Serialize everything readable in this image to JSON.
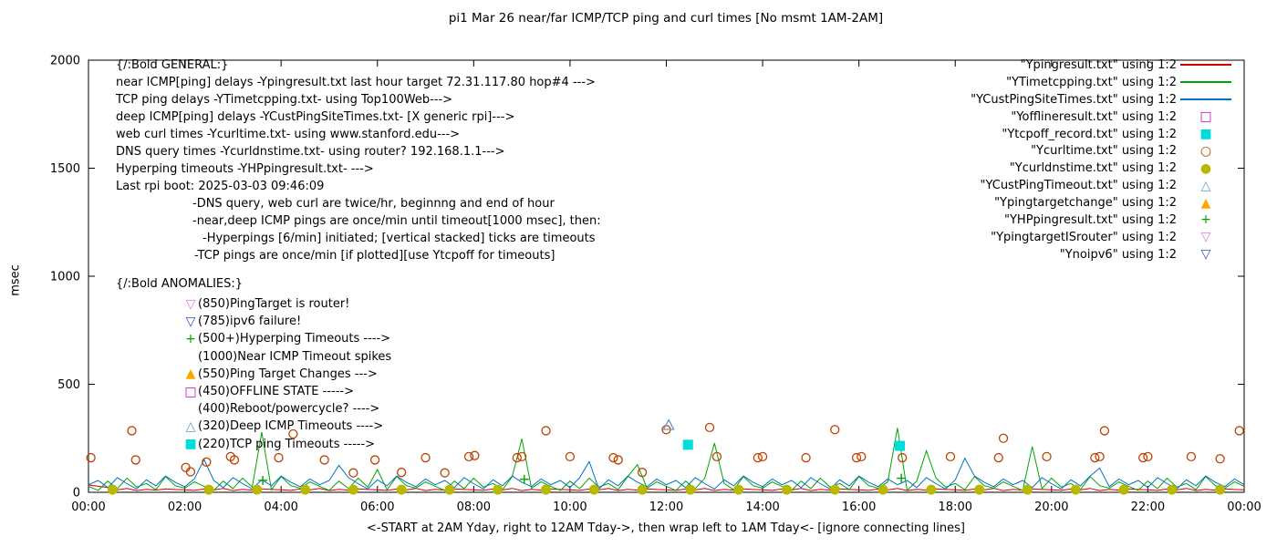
{
  "title": "pi1 Mar 26  near/far ICMP/TCP ping and curl times [No msmt 1AM-2AM]",
  "ylabel": "msec",
  "xlabel": "<-START at 2AM Yday, right to 12AM Tday->, then wrap left to 1AM Tday<- [ignore connecting lines]",
  "annotations": {
    "general": [
      {
        "text": "{/:Bold GENERAL:}",
        "indent": 0
      },
      {
        "text": "near ICMP[ping] delays -Ypingresult.txt last hour target 72.31.117.80 hop#4 --->",
        "indent": 0
      },
      {
        "text": "TCP ping delays -YTimetcpping.txt- using Top100Web--->",
        "indent": 0
      },
      {
        "text": "deep ICMP[ping] delays -YCustPingSiteTimes.txt- [X generic rpi]--->",
        "indent": 0
      },
      {
        "text": "web curl times -Ycurltime.txt- using www.stanford.edu--->",
        "indent": 0
      },
      {
        "text": "DNS query times -Ycurldnstime.txt- using router? 192.168.1.1--->",
        "indent": 0
      },
      {
        "text": "Hyperping timeouts -YHPpingresult.txt- --->",
        "indent": 0
      },
      {
        "text": "Last rpi boot: 2025-03-03 09:46:09",
        "indent": 0
      },
      {
        "text": "-DNS query, web curl are twice/hr, beginnng and end of hour",
        "indent": 84
      },
      {
        "text": "-near,deep ICMP pings are once/min until timeout[1000 msec], then:",
        "indent": 84
      },
      {
        "text": "-Hyperpings [6/min] initiated; [vertical stacked] ticks are timeouts",
        "indent": 95
      },
      {
        "text": "-TCP pings are once/min [if plotted][use Ytcpoff for timeouts]",
        "indent": 86
      }
    ],
    "anomalies_header": "{/:Bold ANOMALIES:}",
    "anomalies": [
      {
        "marker": "nabla-open",
        "color": "#e07ae0",
        "text": "(850)PingTarget is router!"
      },
      {
        "marker": "nabla-open",
        "color": "#3050c8",
        "text": "(785)ipv6 failure!"
      },
      {
        "marker": "plus",
        "color": "#00a400",
        "text": "(500+)Hyperping Timeouts ---->"
      },
      {
        "marker": "none",
        "color": "#000000",
        "text": "(1000)Near ICMP Timeout spikes"
      },
      {
        "marker": "triangle-filled",
        "color": "#ffa500",
        "text": "(550)Ping Target Changes --->"
      },
      {
        "marker": "square-open",
        "color": "#cc00cc",
        "text": "(450)OFFLINE STATE ----->"
      },
      {
        "marker": "none",
        "color": "#000000",
        "text": "(400)Reboot/powercycle? ---->"
      },
      {
        "marker": "triangle-open",
        "color": "#6699cc",
        "text": "(320)Deep ICMP Timeouts ---->"
      },
      {
        "marker": "square-filled",
        "color": "#00dcdc",
        "text": "(220)TCP ping Timeouts ----->"
      }
    ]
  },
  "chart_data": {
    "type": "line",
    "title": "pi1 Mar 26  near/far ICMP/TCP ping and curl times [No msmt 1AM-2AM]",
    "xlabel": "<-START at 2AM Yday, right to 12AM Tday->, then wrap left to 1AM Tday<- [ignore connecting lines]",
    "ylabel": "msec",
    "xlim": [
      0,
      24
    ],
    "ylim": [
      0,
      2000
    ],
    "grid": false,
    "legend_position": "top-right-outside-look",
    "x_tick_pos": [
      0,
      2,
      4,
      6,
      8,
      10,
      12,
      14,
      16,
      18,
      20,
      22,
      24
    ],
    "x_tick_labels": [
      "00:00",
      "02:00",
      "04:00",
      "06:00",
      "08:00",
      "10:00",
      "12:00",
      "14:00",
      "16:00",
      "18:00",
      "20:00",
      "22:00",
      "00:00"
    ],
    "y_ticks": [
      0,
      500,
      1000,
      1500,
      2000
    ],
    "series": [
      {
        "name": "Ypingresult.txt",
        "legend_label": "\"Ypingresult.txt\" using 1:2",
        "style": "line",
        "color": "#cc0000",
        "x_start": 0,
        "x_step": 0.2,
        "values": [
          34,
          28,
          22,
          11,
          18,
          8,
          14,
          10,
          16,
          13,
          12,
          9,
          15,
          11,
          18,
          8,
          14,
          10,
          16,
          13,
          12,
          9,
          15,
          11,
          18,
          8,
          14,
          10,
          16,
          13,
          12,
          9,
          15,
          11,
          18,
          8,
          14,
          10,
          16,
          13,
          12,
          9,
          15,
          11,
          18,
          8,
          14,
          10,
          16,
          13,
          12,
          9,
          15,
          11,
          18,
          8,
          14,
          10,
          16,
          13,
          12,
          9,
          15,
          11,
          18,
          8,
          14,
          10,
          16,
          13,
          12,
          9,
          15,
          11,
          18,
          8,
          14,
          10,
          16,
          13,
          12,
          9,
          15,
          11,
          18,
          8,
          14,
          10,
          16,
          13,
          12,
          9,
          15,
          11,
          18,
          8,
          14,
          10,
          16,
          13,
          12,
          9,
          15,
          11,
          18,
          8,
          14,
          10,
          16,
          13,
          12,
          9,
          15,
          11,
          18,
          8,
          14,
          10,
          16,
          13,
          12
        ]
      },
      {
        "name": "YTimetcpping.txt",
        "legend_label": "\"YTimetcpping.txt\" using 1:2",
        "style": "line",
        "color": "#00a400",
        "x_start": 0,
        "x_step": 0.2,
        "values": [
          28,
          9,
          52,
          17,
          66,
          24,
          41,
          12,
          73,
          31,
          19,
          48,
          28,
          9,
          52,
          17,
          66,
          24,
          278,
          12,
          73,
          31,
          19,
          48,
          28,
          9,
          52,
          17,
          66,
          24,
          105,
          12,
          73,
          31,
          19,
          48,
          28,
          9,
          52,
          17,
          66,
          24,
          41,
          12,
          73,
          248,
          19,
          48,
          28,
          9,
          52,
          17,
          66,
          24,
          41,
          12,
          73,
          128,
          19,
          48,
          28,
          9,
          52,
          17,
          66,
          228,
          41,
          12,
          73,
          31,
          19,
          48,
          28,
          9,
          52,
          17,
          66,
          24,
          41,
          12,
          73,
          31,
          19,
          48,
          298,
          9,
          52,
          192,
          66,
          24,
          41,
          12,
          73,
          31,
          19,
          48,
          28,
          9,
          212,
          17,
          66,
          24,
          41,
          12,
          73,
          31,
          19,
          48,
          28,
          9,
          52,
          17,
          66,
          24,
          41,
          12,
          73,
          31,
          19,
          48,
          28
        ]
      },
      {
        "name": "YCustPingSiteTimes.txt",
        "legend_label": "\"YCustPingSiteTimes.txt\" using 1:2",
        "style": "line",
        "color": "#0072c6",
        "x_start": 0,
        "x_step": 0.2,
        "values": [
          35,
          55,
          22,
          68,
          40,
          15,
          58,
          30,
          75,
          47,
          26,
          62,
          152,
          55,
          22,
          68,
          40,
          15,
          58,
          30,
          75,
          47,
          26,
          62,
          35,
          55,
          125,
          68,
          40,
          15,
          58,
          30,
          75,
          47,
          26,
          62,
          35,
          55,
          22,
          68,
          40,
          15,
          58,
          30,
          75,
          47,
          26,
          62,
          35,
          55,
          22,
          68,
          142,
          15,
          58,
          30,
          75,
          47,
          26,
          62,
          35,
          55,
          22,
          68,
          40,
          15,
          58,
          30,
          75,
          47,
          26,
          62,
          35,
          55,
          22,
          68,
          40,
          15,
          58,
          30,
          75,
          47,
          26,
          62,
          35,
          55,
          22,
          68,
          40,
          15,
          58,
          158,
          75,
          47,
          26,
          62,
          35,
          55,
          22,
          68,
          40,
          15,
          58,
          30,
          75,
          112,
          26,
          62,
          35,
          55,
          22,
          68,
          40,
          15,
          58,
          30,
          75,
          47,
          26,
          62,
          35
        ]
      },
      {
        "name": "Yofflineresult.txt",
        "legend_label": "\"Yofflineresult.txt\" using 1:2",
        "style": "scatter",
        "marker": "square-open",
        "color": "#cc00cc",
        "points": []
      },
      {
        "name": "Ytcpoff_record.txt",
        "legend_label": "\"Ytcpoff_record.txt\" using 1:2",
        "style": "scatter",
        "marker": "square-filled",
        "color": "#00dcdc",
        "points": [
          [
            12.45,
            220
          ],
          [
            16.85,
            215
          ]
        ]
      },
      {
        "name": "Ycurltime.txt",
        "legend_label": "\"Ycurltime.txt\" using 1:2",
        "style": "scatter",
        "marker": "circle-open",
        "color": "#c04000",
        "points": [
          [
            0.05,
            160
          ],
          [
            0.9,
            285
          ],
          [
            0.98,
            150
          ],
          [
            2.02,
            115
          ],
          [
            2.12,
            95
          ],
          [
            2.45,
            140
          ],
          [
            2.95,
            165
          ],
          [
            3.03,
            150
          ],
          [
            3.95,
            160
          ],
          [
            4.25,
            270
          ],
          [
            4.9,
            150
          ],
          [
            5.5,
            90
          ],
          [
            5.95,
            150
          ],
          [
            6.5,
            92
          ],
          [
            7.0,
            160
          ],
          [
            7.4,
            90
          ],
          [
            7.9,
            165
          ],
          [
            8.02,
            170
          ],
          [
            8.9,
            160
          ],
          [
            9.0,
            165
          ],
          [
            9.5,
            285
          ],
          [
            10.0,
            165
          ],
          [
            10.9,
            160
          ],
          [
            11.0,
            150
          ],
          [
            11.5,
            92
          ],
          [
            12.0,
            290
          ],
          [
            12.9,
            300
          ],
          [
            13.05,
            165
          ],
          [
            13.9,
            160
          ],
          [
            14.0,
            165
          ],
          [
            14.9,
            160
          ],
          [
            15.5,
            290
          ],
          [
            15.95,
            160
          ],
          [
            16.05,
            165
          ],
          [
            16.9,
            160
          ],
          [
            17.9,
            165
          ],
          [
            18.9,
            160
          ],
          [
            19.0,
            250
          ],
          [
            19.9,
            165
          ],
          [
            20.9,
            160
          ],
          [
            21.0,
            165
          ],
          [
            21.1,
            285
          ],
          [
            21.9,
            160
          ],
          [
            22.0,
            165
          ],
          [
            22.9,
            165
          ],
          [
            23.5,
            155
          ],
          [
            23.9,
            285
          ]
        ]
      },
      {
        "name": "Ycurldnstime.txt",
        "legend_label": "\"Ycurldnstime.txt\" using 1:2",
        "style": "scatter",
        "marker": "circle-filled",
        "color": "#b8b800",
        "points": [
          [
            0.5,
            12
          ],
          [
            2.5,
            12
          ],
          [
            3.5,
            12
          ],
          [
            4.5,
            12
          ],
          [
            5.5,
            12
          ],
          [
            6.5,
            12
          ],
          [
            7.5,
            12
          ],
          [
            8.5,
            12
          ],
          [
            9.5,
            12
          ],
          [
            10.5,
            12
          ],
          [
            11.5,
            12
          ],
          [
            12.5,
            12
          ],
          [
            13.5,
            12
          ],
          [
            14.5,
            12
          ],
          [
            15.5,
            12
          ],
          [
            16.5,
            12
          ],
          [
            17.5,
            12
          ],
          [
            18.5,
            12
          ],
          [
            19.5,
            12
          ],
          [
            20.5,
            12
          ],
          [
            21.5,
            12
          ],
          [
            22.5,
            12
          ],
          [
            23.5,
            12
          ]
        ]
      },
      {
        "name": "YCustPingTimeout.txt",
        "legend_label": "\"YCustPingTimeout.txt\" using 1:2",
        "style": "scatter",
        "marker": "triangle-open",
        "color": "#6699cc",
        "points": [
          [
            12.05,
            310
          ]
        ]
      },
      {
        "name": "Ypingtargetchange",
        "legend_label": "\"Ypingtargetchange\" using 1:2",
        "style": "scatter",
        "marker": "triangle-filled",
        "color": "#ffa500",
        "points": []
      },
      {
        "name": "YHPpingresult.txt",
        "legend_label": "\"YHPpingresult.txt\" using 1:2",
        "style": "scatter",
        "marker": "plus",
        "color": "#00a400",
        "points": [
          [
            3.62,
            55
          ],
          [
            9.05,
            60
          ],
          [
            16.88,
            65
          ]
        ]
      },
      {
        "name": "YpingtargetISrouter",
        "legend_label": "\"YpingtargetISrouter\" using 1:2",
        "style": "scatter",
        "marker": "nabla-open",
        "color": "#e07ae0",
        "points": []
      },
      {
        "name": "Ynoipv6",
        "legend_label": "\"Ynoipv6\" using 1:2",
        "style": "scatter",
        "marker": "nabla-open",
        "color": "#3050c8",
        "points": []
      }
    ]
  }
}
